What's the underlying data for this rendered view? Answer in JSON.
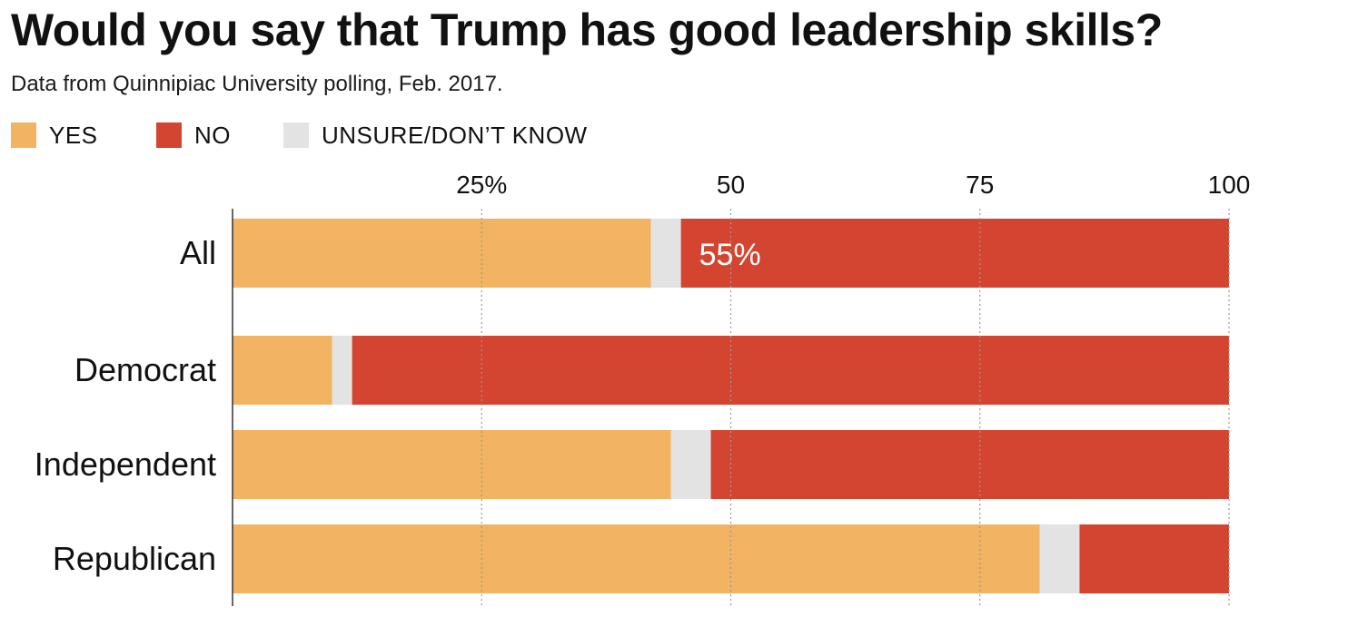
{
  "title": "Would you say that Trump has good leadership skills?",
  "subtitle": "Data from Quinnipiac University polling, Feb. 2017.",
  "legend": [
    {
      "label": "YES",
      "color": "#f2b362"
    },
    {
      "label": "NO",
      "color": "#d34530"
    },
    {
      "label": "UNSURE/DON’T KNOW",
      "color": "#e3e3e3"
    }
  ],
  "chart_data": {
    "type": "bar",
    "orientation": "horizontal",
    "stacked": true,
    "categories": [
      "All",
      "Democrat",
      "Independent",
      "Republican"
    ],
    "series": [
      {
        "name": "YES",
        "color": "#f2b362",
        "values": [
          42,
          10,
          44,
          81
        ]
      },
      {
        "name": "UNSURE/DON’T KNOW",
        "color": "#e3e3e3",
        "values": [
          3,
          2,
          4,
          4
        ]
      },
      {
        "name": "NO",
        "color": "#d34530",
        "values": [
          55,
          88,
          52,
          15
        ]
      }
    ],
    "xlim": [
      0,
      100
    ],
    "x_ticks": [
      {
        "value": 25,
        "label": "25%"
      },
      {
        "value": 50,
        "label": "50"
      },
      {
        "value": 75,
        "label": "75"
      },
      {
        "value": 100,
        "label": "100"
      }
    ],
    "annotations": [
      {
        "category": "All",
        "series": "NO",
        "text": "55%"
      }
    ],
    "grid": "dotted vertical",
    "legend_position": "top-left"
  }
}
